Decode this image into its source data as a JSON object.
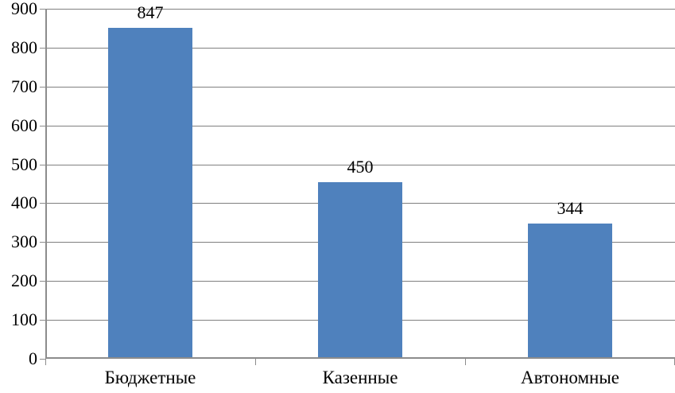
{
  "chart_data": {
    "type": "bar",
    "title": "",
    "xlabel": "",
    "ylabel": "",
    "categories": [
      "Бюджетные",
      "Казенные",
      "Автономные"
    ],
    "values": [
      847,
      450,
      344
    ],
    "data_labels": [
      "847",
      "450",
      "344"
    ],
    "ylim": [
      0,
      900
    ],
    "ytick_step": 100,
    "yticks": [
      "0",
      "100",
      "200",
      "300",
      "400",
      "500",
      "600",
      "700",
      "800",
      "900"
    ],
    "grid": "horizontal",
    "legend": "none",
    "colors": {
      "bar": "#4f81bd",
      "gridline": "#808080",
      "axis": "#8c8c8c",
      "text": "#000000"
    }
  }
}
